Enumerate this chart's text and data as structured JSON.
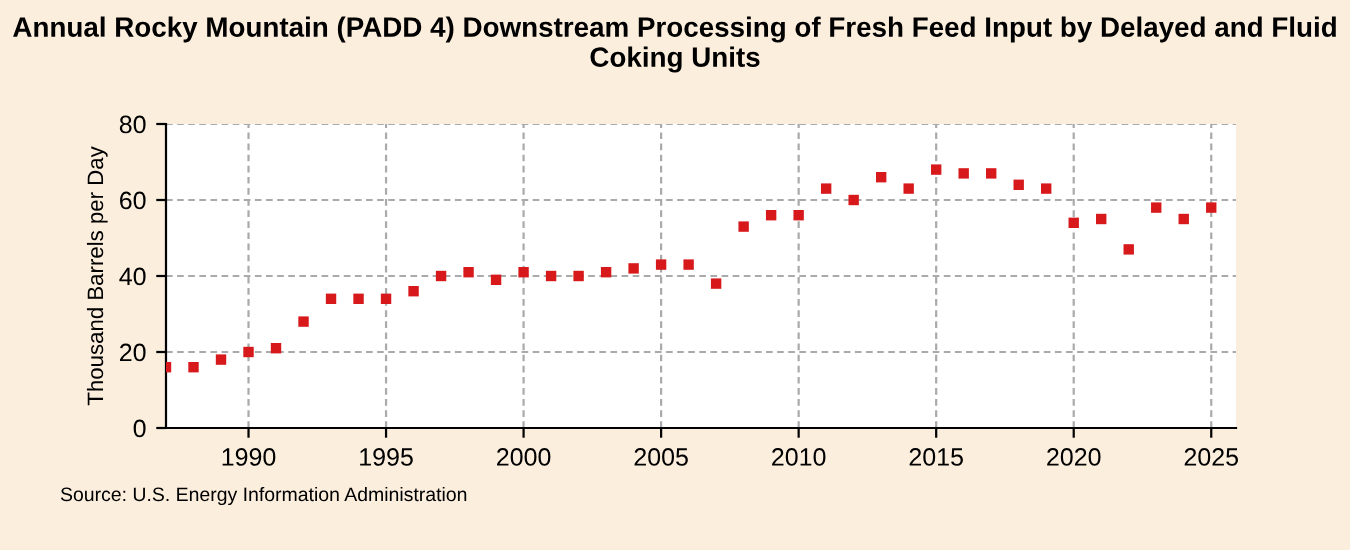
{
  "chart_data": {
    "type": "scatter",
    "title": "Annual Rocky Mountain (PADD 4) Downstream Processing of Fresh Feed Input by Delayed and Fluid Coking Units",
    "ylabel": "Thousand Barrels per Day",
    "x": [
      1987,
      1988,
      1989,
      1990,
      1991,
      1992,
      1993,
      1994,
      1995,
      1996,
      1997,
      1998,
      1999,
      2000,
      2001,
      2002,
      2003,
      2004,
      2005,
      2006,
      2007,
      2008,
      2009,
      2010,
      2011,
      2012,
      2013,
      2014,
      2015,
      2016,
      2017,
      2018,
      2019,
      2020,
      2021,
      2022,
      2023,
      2024,
      2025
    ],
    "series": [
      {
        "color": "#d7191c",
        "values": [
          16,
          16,
          18,
          20,
          21,
          28,
          34,
          34,
          34,
          36,
          40,
          41,
          39,
          41,
          40,
          40,
          41,
          42,
          43,
          43,
          38,
          53,
          56,
          56,
          63,
          60,
          66,
          63,
          68,
          67,
          67,
          64,
          63,
          54,
          55,
          47,
          58,
          55,
          58
        ]
      }
    ],
    "xlim": [
      1987,
      2025.9
    ],
    "xticks": [
      1990,
      1995,
      2000,
      2005,
      2010,
      2015,
      2020,
      2025
    ],
    "ylim": [
      0,
      80
    ],
    "yticks": [
      0,
      20,
      40,
      60,
      80
    ],
    "grid": true,
    "marker": "square",
    "annotations": [
      "Source: U.S. Energy Information Administration"
    ]
  }
}
